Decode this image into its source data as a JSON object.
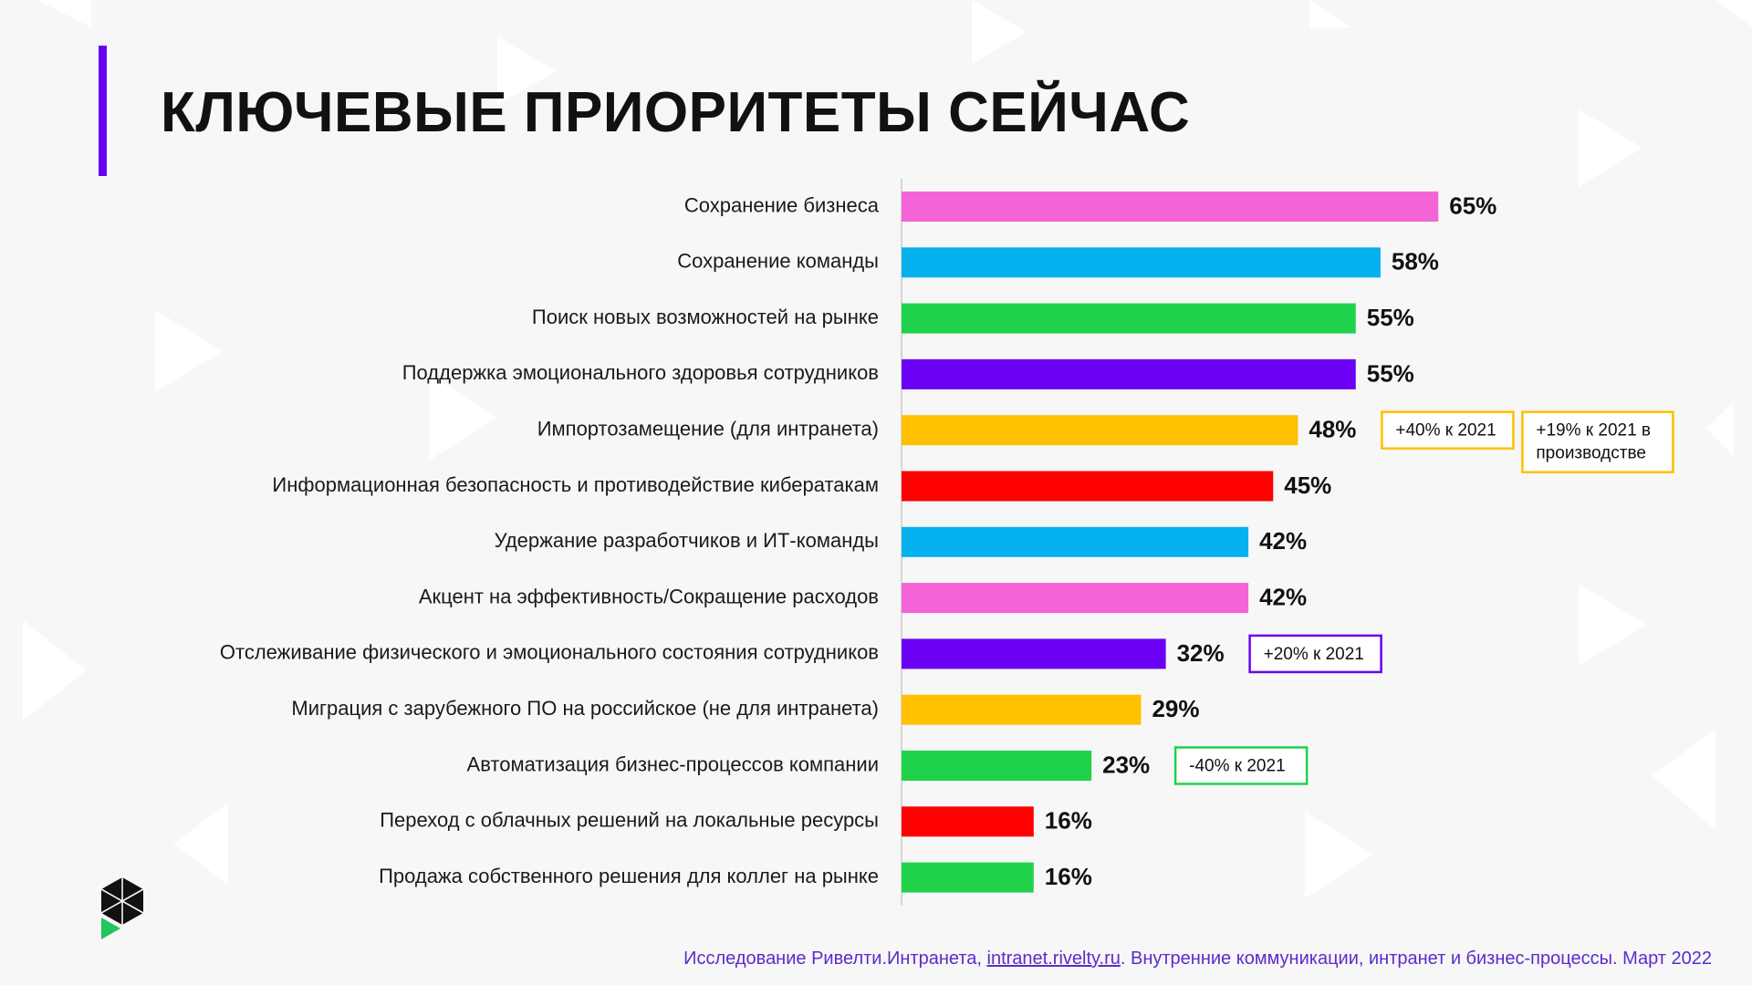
{
  "title": "КЛЮЧЕВЫЕ ПРИОРИТЕТЫ СЕЙЧАС",
  "colors": {
    "accent": "#6a00f4",
    "footer": "#5b2cc9",
    "logo_green": "#22c55e"
  },
  "chart_data": {
    "type": "bar",
    "orientation": "horizontal",
    "title": "КЛЮЧЕВЫЕ ПРИОРИТЕТЫ СЕЙЧАС",
    "xlabel": "",
    "ylabel": "",
    "xlim": [
      0,
      100
    ],
    "grid": false,
    "value_suffix": "%",
    "bars": [
      {
        "category": "Сохранение бизнеса",
        "value": 65,
        "label": "65%",
        "color": "#f464d6"
      },
      {
        "category": "Сохранение команды",
        "value": 58,
        "label": "58%",
        "color": "#05b0ef"
      },
      {
        "category": "Поиск новых возможностей на рынке",
        "value": 55,
        "label": "55%",
        "color": "#1fd24a"
      },
      {
        "category": "Поддержка эмоционального здоровья сотрудников",
        "value": 55,
        "label": "55%",
        "color": "#6a00f4"
      },
      {
        "category": "Импортозамещение (для интранета)",
        "value": 48,
        "label": "48%",
        "color": "#ffc000",
        "notes": [
          {
            "lines": [
              "+40% к 2021"
            ],
            "color": "#ffc000"
          },
          {
            "lines": [
              "+19% к 2021 в",
              "производстве"
            ],
            "color": "#ffc000"
          }
        ]
      },
      {
        "category": "Информационная безопасность и противодействие кибератакам",
        "value": 45,
        "label": "45%",
        "color": "#ff0000"
      },
      {
        "category": "Удержание разработчиков и ИТ-команды",
        "value": 42,
        "label": "42%",
        "color": "#05b0ef"
      },
      {
        "category": "Акцент на эффективность/Сокращение расходов",
        "value": 42,
        "label": "42%",
        "color": "#f464d6"
      },
      {
        "category": "Отслеживание физического и эмоционального состояния сотрудников",
        "value": 32,
        "label": "32%",
        "color": "#6a00f4",
        "notes": [
          {
            "lines": [
              "+20% к 2021"
            ],
            "color": "#6a00f4"
          }
        ]
      },
      {
        "category": "Миграция с зарубежного ПО на российское (не для интранета)",
        "value": 29,
        "label": "29%",
        "color": "#ffc000"
      },
      {
        "category": "Автоматизация бизнес-процессов компании",
        "value": 23,
        "label": "23%",
        "color": "#1fd24a",
        "notes": [
          {
            "lines": [
              "-40% к 2021"
            ],
            "color": "#1fd24a"
          }
        ]
      },
      {
        "category": "Переход с облачных решений на локальные ресурсы",
        "value": 16,
        "label": "16%",
        "color": "#ff0000"
      },
      {
        "category": "Продажа собственного решения для коллег на рынке",
        "value": 16,
        "label": "16%",
        "color": "#1fd24a"
      }
    ]
  },
  "footer": {
    "prefix": "Исследование Ривелти.Интранета, ",
    "link": "intranet.rivelty.ru",
    "suffix": ". Внутренние коммуникации, интранет и бизнес-процессы. Март 2022"
  }
}
